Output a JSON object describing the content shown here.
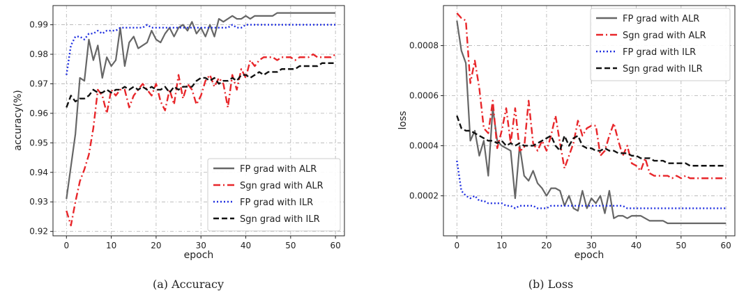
{
  "chart_data": [
    {
      "type": "line",
      "caption": "(a) Accuracy",
      "title": "",
      "xlabel": "epoch",
      "ylabel": "accuracy(%)",
      "xlim": [
        -3,
        62
      ],
      "ylim": [
        0.9185,
        0.9965
      ],
      "xticks": [
        0,
        10,
        20,
        30,
        40,
        50,
        60
      ],
      "yticks": [
        0.92,
        0.93,
        0.94,
        0.95,
        0.96,
        0.97,
        0.98,
        0.99
      ],
      "grid": true,
      "legend_position": "bottom-right",
      "series": [
        {
          "name": "FP grad with ALR",
          "color": "#666666",
          "dash": "solid",
          "values": [
            0.931,
            0.942,
            0.953,
            0.972,
            0.971,
            0.985,
            0.978,
            0.983,
            0.972,
            0.979,
            0.976,
            0.978,
            0.989,
            0.976,
            0.984,
            0.986,
            0.982,
            0.983,
            0.984,
            0.988,
            0.985,
            0.984,
            0.987,
            0.989,
            0.986,
            0.989,
            0.99,
            0.988,
            0.991,
            0.987,
            0.989,
            0.986,
            0.99,
            0.986,
            0.992,
            0.991,
            0.992,
            0.993,
            0.992,
            0.992,
            0.993,
            0.992,
            0.993,
            0.993,
            0.993,
            0.993,
            0.993,
            0.994,
            0.994,
            0.994,
            0.994,
            0.994,
            0.994,
            0.994,
            0.994,
            0.994,
            0.994,
            0.994,
            0.994,
            0.994,
            0.994
          ]
        },
        {
          "name": "Sgn grad with ALR",
          "color": "#e8262a",
          "dash": "dashdot",
          "values": [
            0.927,
            0.922,
            0.93,
            0.937,
            0.941,
            0.946,
            0.955,
            0.968,
            0.966,
            0.96,
            0.968,
            0.966,
            0.968,
            0.968,
            0.962,
            0.966,
            0.968,
            0.97,
            0.968,
            0.966,
            0.97,
            0.964,
            0.961,
            0.968,
            0.963,
            0.973,
            0.965,
            0.97,
            0.968,
            0.963,
            0.966,
            0.971,
            0.973,
            0.969,
            0.972,
            0.97,
            0.962,
            0.973,
            0.968,
            0.975,
            0.972,
            0.978,
            0.976,
            0.978,
            0.979,
            0.979,
            0.979,
            0.978,
            0.979,
            0.979,
            0.979,
            0.978,
            0.979,
            0.979,
            0.979,
            0.98,
            0.979,
            0.979,
            0.979,
            0.979,
            0.98
          ]
        },
        {
          "name": "FP grad with ILR",
          "color": "#1f2fe0",
          "dash": "dotted",
          "values": [
            0.973,
            0.983,
            0.986,
            0.986,
            0.985,
            0.987,
            0.987,
            0.988,
            0.987,
            0.988,
            0.988,
            0.988,
            0.989,
            0.989,
            0.989,
            0.989,
            0.989,
            0.989,
            0.99,
            0.989,
            0.989,
            0.989,
            0.989,
            0.989,
            0.989,
            0.989,
            0.989,
            0.989,
            0.989,
            0.989,
            0.989,
            0.989,
            0.989,
            0.989,
            0.989,
            0.989,
            0.989,
            0.99,
            0.989,
            0.989,
            0.99,
            0.99,
            0.99,
            0.99,
            0.99,
            0.99,
            0.99,
            0.99,
            0.99,
            0.99,
            0.99,
            0.99,
            0.99,
            0.99,
            0.99,
            0.99,
            0.99,
            0.99,
            0.99,
            0.99,
            0.99
          ]
        },
        {
          "name": "Sgn grad with ILR",
          "color": "#111111",
          "dash": "dashed",
          "values": [
            0.962,
            0.966,
            0.964,
            0.965,
            0.965,
            0.966,
            0.968,
            0.967,
            0.967,
            0.968,
            0.967,
            0.968,
            0.968,
            0.969,
            0.968,
            0.969,
            0.968,
            0.969,
            0.968,
            0.969,
            0.968,
            0.968,
            0.969,
            0.967,
            0.969,
            0.968,
            0.969,
            0.969,
            0.969,
            0.971,
            0.972,
            0.972,
            0.971,
            0.972,
            0.97,
            0.971,
            0.971,
            0.972,
            0.971,
            0.973,
            0.973,
            0.972,
            0.973,
            0.974,
            0.973,
            0.974,
            0.974,
            0.974,
            0.975,
            0.975,
            0.975,
            0.975,
            0.976,
            0.976,
            0.976,
            0.976,
            0.976,
            0.977,
            0.977,
            0.977,
            0.977
          ]
        }
      ]
    },
    {
      "type": "line",
      "caption": "(b) Loss",
      "title": "",
      "xlabel": "epoch",
      "ylabel": "loss",
      "xlim": [
        -3,
        62
      ],
      "ylim": [
        4e-05,
        0.00096
      ],
      "xticks": [
        0,
        10,
        20,
        30,
        40,
        50,
        60
      ],
      "yticks": [
        0.0002,
        0.0004,
        0.0006,
        0.0008
      ],
      "ytick_labels": [
        "0.0002",
        "0.0004",
        "0.0006",
        "0.0008"
      ],
      "grid": true,
      "legend_position": "top-right",
      "series": [
        {
          "name": "FP grad with ALR",
          "color": "#666666",
          "dash": "solid",
          "values": [
            0.0009,
            0.00078,
            0.00073,
            0.00042,
            0.00046,
            0.00036,
            0.00042,
            0.00028,
            0.00055,
            0.00042,
            0.0004,
            0.00039,
            0.00038,
            0.00019,
            0.0004,
            0.00028,
            0.00026,
            0.0003,
            0.00025,
            0.00023,
            0.0002,
            0.00023,
            0.00023,
            0.00022,
            0.00016,
            0.0002,
            0.00015,
            0.00014,
            0.00022,
            0.00015,
            0.00019,
            0.00017,
            0.0002,
            0.00013,
            0.00022,
            0.00011,
            0.00012,
            0.00012,
            0.00011,
            0.00012,
            0.00012,
            0.00012,
            0.00011,
            0.0001,
            0.0001,
            0.0001,
            0.0001,
            9e-05,
            9e-05,
            9e-05,
            9e-05,
            9e-05,
            9e-05,
            9e-05,
            9e-05,
            9e-05,
            9e-05,
            9e-05,
            9e-05,
            9e-05,
            9e-05
          ]
        },
        {
          "name": "Sgn grad with ALR",
          "color": "#e8262a",
          "dash": "dashdot",
          "values": [
            0.00093,
            0.00091,
            0.0009,
            0.00065,
            0.00074,
            0.00063,
            0.00047,
            0.00045,
            0.00058,
            0.00039,
            0.00046,
            0.00055,
            0.00041,
            0.00055,
            0.00038,
            0.00039,
            0.00058,
            0.00041,
            0.00038,
            0.00042,
            0.00038,
            0.00044,
            0.00052,
            0.00041,
            0.00031,
            0.00036,
            0.00041,
            0.0005,
            0.00044,
            0.00047,
            0.00048,
            0.00048,
            0.00036,
            0.00038,
            0.00044,
            0.00049,
            0.00042,
            0.00036,
            0.0004,
            0.00033,
            0.00032,
            0.0003,
            0.00035,
            0.00029,
            0.00028,
            0.00028,
            0.00028,
            0.00028,
            0.00027,
            0.00028,
            0.00027,
            0.00028,
            0.00027,
            0.00027,
            0.00027,
            0.00027,
            0.00027,
            0.00027,
            0.00027,
            0.00027,
            0.00027
          ]
        },
        {
          "name": "FP grad with ILR",
          "color": "#1f2fe0",
          "dash": "dotted",
          "values": [
            0.00034,
            0.00022,
            0.0002,
            0.00019,
            0.0002,
            0.00018,
            0.00018,
            0.00017,
            0.00017,
            0.00017,
            0.00017,
            0.00016,
            0.00016,
            0.00015,
            0.00016,
            0.00016,
            0.00016,
            0.00016,
            0.00015,
            0.00015,
            0.00015,
            0.00016,
            0.00016,
            0.00016,
            0.00016,
            0.00016,
            0.00016,
            0.00016,
            0.00016,
            0.00016,
            0.00016,
            0.00016,
            0.00016,
            0.00016,
            0.00016,
            0.00016,
            0.00016,
            0.00016,
            0.00015,
            0.00015,
            0.00015,
            0.00015,
            0.00015,
            0.00015,
            0.00015,
            0.00015,
            0.00015,
            0.00015,
            0.00015,
            0.00015,
            0.00015,
            0.00015,
            0.00015,
            0.00015,
            0.00015,
            0.00015,
            0.00015,
            0.00015,
            0.00015,
            0.00015,
            0.00015
          ]
        },
        {
          "name": "Sgn grad with ILR",
          "color": "#111111",
          "dash": "dashed",
          "values": [
            0.00052,
            0.00047,
            0.00046,
            0.00046,
            0.00045,
            0.00044,
            0.00043,
            0.00042,
            0.00042,
            0.00041,
            0.00042,
            0.0004,
            0.00041,
            0.0004,
            0.00041,
            0.0004,
            0.0004,
            0.0004,
            0.00041,
            0.00042,
            0.00043,
            0.00044,
            0.0004,
            0.00038,
            0.00044,
            0.0004,
            0.00043,
            0.00044,
            0.0004,
            0.00039,
            0.00039,
            0.00038,
            0.00038,
            0.00039,
            0.00038,
            0.00038,
            0.00037,
            0.00037,
            0.00037,
            0.00036,
            0.00036,
            0.00035,
            0.00035,
            0.00035,
            0.00034,
            0.00034,
            0.00034,
            0.00033,
            0.00033,
            0.00033,
            0.00033,
            0.00033,
            0.00032,
            0.00032,
            0.00032,
            0.00032,
            0.00032,
            0.00032,
            0.00032,
            0.00032,
            0.00032
          ]
        }
      ]
    }
  ]
}
